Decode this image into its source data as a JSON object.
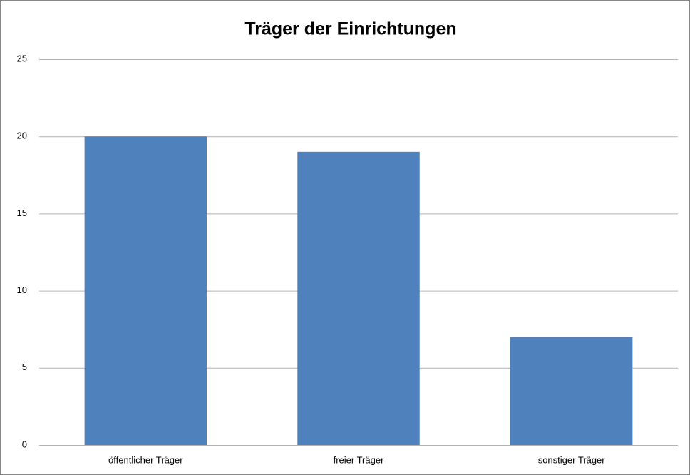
{
  "chart_data": {
    "type": "bar",
    "title": "Träger der Einrichtungen",
    "categories": [
      "öffentlicher Träger",
      "freier Träger",
      "sonstiger Träger"
    ],
    "values": [
      20,
      19,
      7
    ],
    "color": "#4f81bd",
    "ylim": [
      0,
      25
    ],
    "yticks": [
      0,
      5,
      10,
      15,
      20,
      25
    ],
    "grid": true
  }
}
